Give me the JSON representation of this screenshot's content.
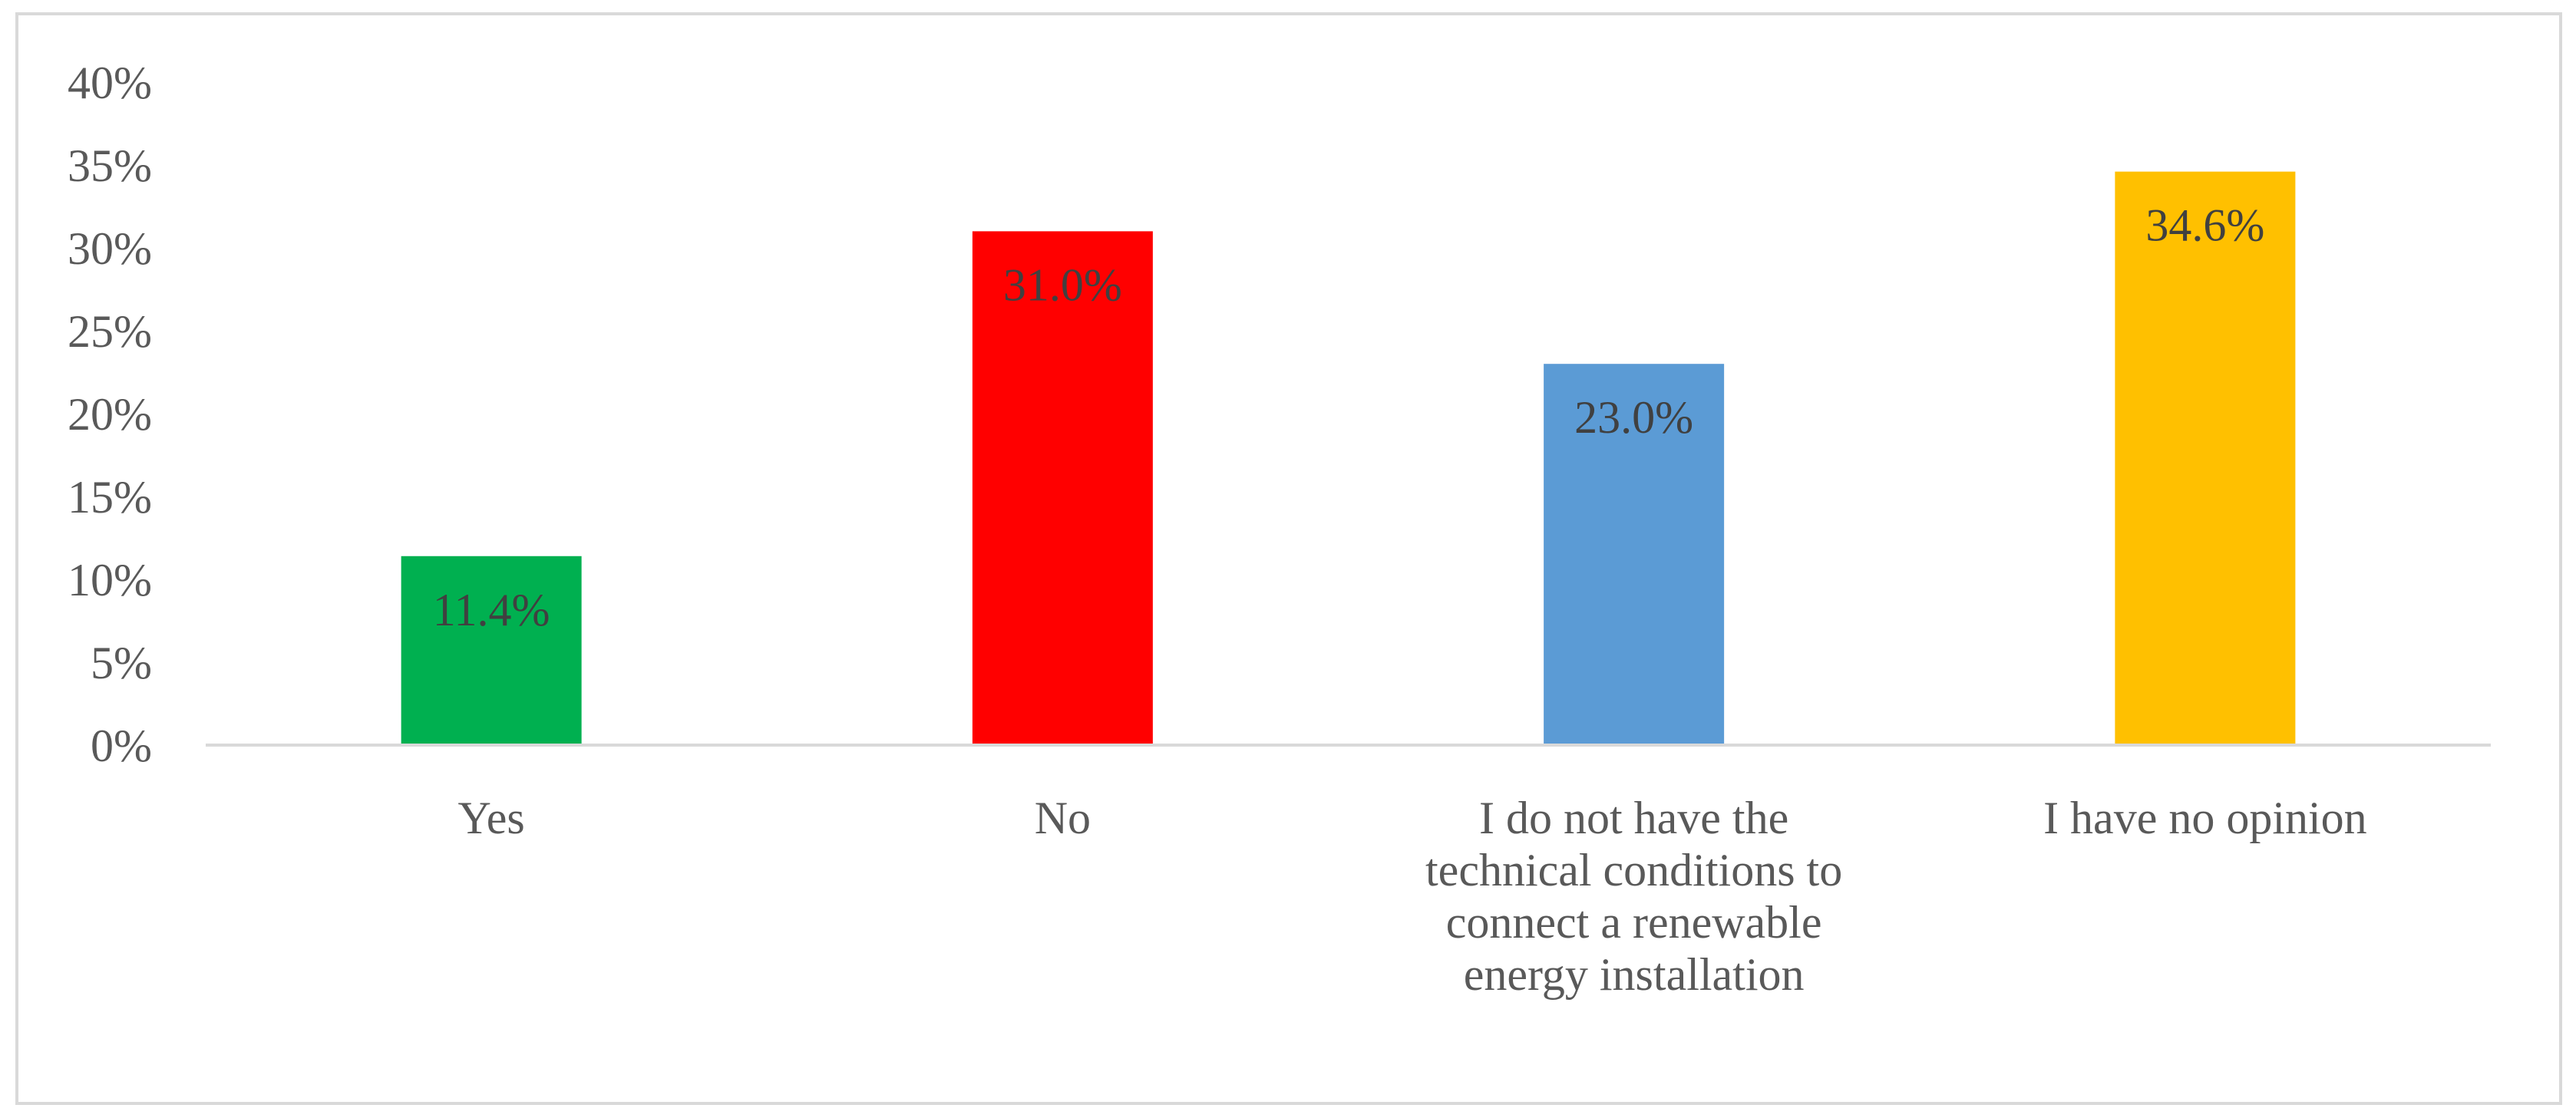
{
  "chart_data": {
    "type": "bar",
    "title": "",
    "xlabel": "",
    "ylabel": "",
    "categories": [
      "Yes",
      "No",
      "I do not have the technical conditions to connect a renewable energy installation",
      "I have no opinion"
    ],
    "category_label_lines": [
      [
        "Yes"
      ],
      [
        "No"
      ],
      [
        "I do not have the",
        "technical conditions to",
        "connect a renewable",
        "energy installation"
      ],
      [
        "I have no opinion"
      ]
    ],
    "values": [
      11.4,
      31.0,
      23.0,
      34.6
    ],
    "data_labels": [
      "11.4%",
      "31.0%",
      "23.0%",
      "34.6%"
    ],
    "bar_colors": [
      "#00b050",
      "#ff0000",
      "#5b9bd5",
      "#ffc000"
    ],
    "ylim": [
      0,
      40
    ],
    "yticks": [
      0,
      5,
      10,
      15,
      20,
      25,
      30,
      35,
      40
    ],
    "ytick_labels": [
      "0%",
      "5%",
      "10%",
      "15%",
      "20%",
      "25%",
      "30%",
      "35%",
      "40%"
    ],
    "grid": false,
    "legend": "none"
  }
}
